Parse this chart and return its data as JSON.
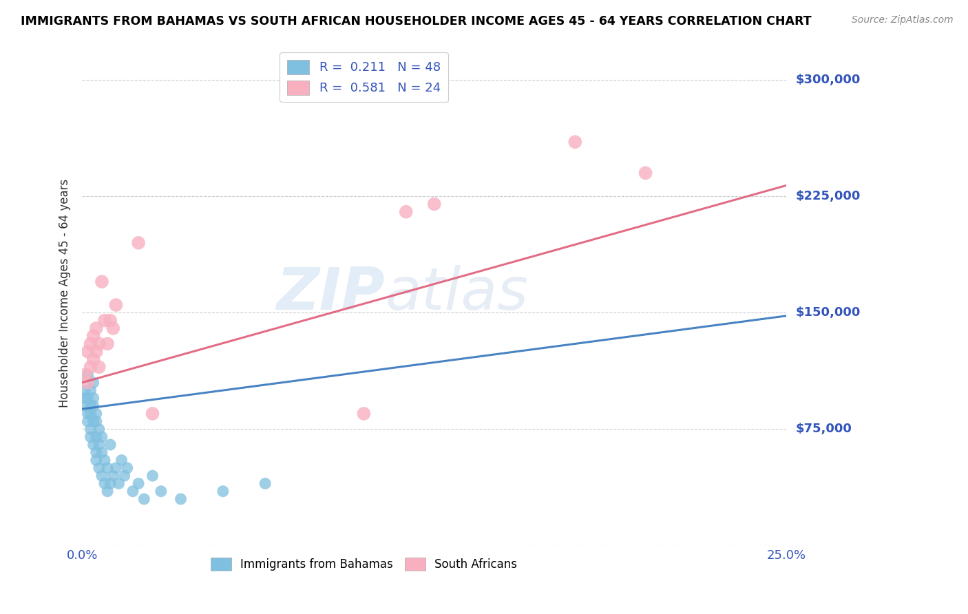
{
  "title": "IMMIGRANTS FROM BAHAMAS VS SOUTH AFRICAN HOUSEHOLDER INCOME AGES 45 - 64 YEARS CORRELATION CHART",
  "source": "Source: ZipAtlas.com",
  "ylabel": "Householder Income Ages 45 - 64 years",
  "xlim": [
    0,
    0.25
  ],
  "ylim": [
    0,
    325000
  ],
  "yticks": [
    0,
    75000,
    150000,
    225000,
    300000
  ],
  "ytick_labels": [
    "",
    "$75,000",
    "$150,000",
    "$225,000",
    "$300,000"
  ],
  "xticks": [
    0.0,
    0.05,
    0.1,
    0.15,
    0.2,
    0.25
  ],
  "background_color": "#ffffff",
  "blue_color": "#7fbfdf",
  "pink_color": "#f8b0c0",
  "blue_line_color": "#3a7abf",
  "pink_line_color": "#e0607a",
  "grid_color": "#cccccc",
  "label_color": "#3355bb",
  "watermark_zip": "ZIP",
  "watermark_atlas": "atlas",
  "legend_r_blue": "0.211",
  "legend_n_blue": "48",
  "legend_r_pink": "0.581",
  "legend_n_pink": "24",
  "blue_scatter_x": [
    0.001,
    0.001,
    0.001,
    0.002,
    0.002,
    0.002,
    0.002,
    0.003,
    0.003,
    0.003,
    0.003,
    0.003,
    0.004,
    0.004,
    0.004,
    0.004,
    0.004,
    0.005,
    0.005,
    0.005,
    0.005,
    0.005,
    0.006,
    0.006,
    0.006,
    0.007,
    0.007,
    0.007,
    0.008,
    0.008,
    0.009,
    0.009,
    0.01,
    0.01,
    0.011,
    0.012,
    0.013,
    0.014,
    0.015,
    0.016,
    0.018,
    0.02,
    0.022,
    0.025,
    0.028,
    0.035,
    0.05,
    0.065
  ],
  "blue_scatter_y": [
    95000,
    100000,
    90000,
    80000,
    110000,
    85000,
    95000,
    75000,
    85000,
    90000,
    70000,
    100000,
    65000,
    80000,
    90000,
    95000,
    105000,
    60000,
    70000,
    80000,
    55000,
    85000,
    50000,
    65000,
    75000,
    45000,
    60000,
    70000,
    40000,
    55000,
    35000,
    50000,
    40000,
    65000,
    45000,
    50000,
    40000,
    55000,
    45000,
    50000,
    35000,
    40000,
    30000,
    45000,
    35000,
    30000,
    35000,
    40000
  ],
  "pink_scatter_x": [
    0.001,
    0.002,
    0.002,
    0.003,
    0.003,
    0.004,
    0.004,
    0.005,
    0.005,
    0.006,
    0.006,
    0.007,
    0.008,
    0.009,
    0.01,
    0.011,
    0.012,
    0.02,
    0.025,
    0.1,
    0.115,
    0.125,
    0.175,
    0.2
  ],
  "pink_scatter_y": [
    110000,
    105000,
    125000,
    115000,
    130000,
    120000,
    135000,
    125000,
    140000,
    130000,
    115000,
    170000,
    145000,
    130000,
    145000,
    140000,
    155000,
    195000,
    85000,
    85000,
    215000,
    220000,
    260000,
    240000
  ],
  "blue_trend_x": [
    0.0,
    0.25
  ],
  "blue_trend_y": [
    88000,
    148000
  ],
  "pink_trend_x": [
    0.0,
    0.25
  ],
  "pink_trend_y": [
    105000,
    232000
  ]
}
